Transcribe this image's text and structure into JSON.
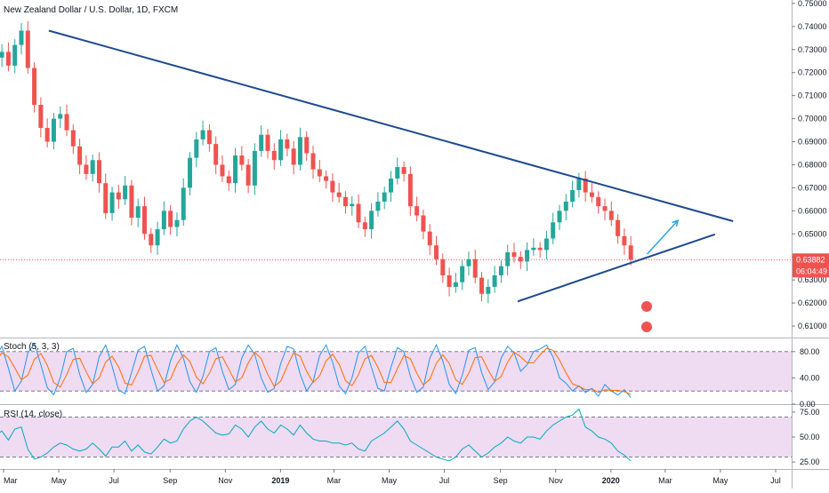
{
  "chart_data": [
    {
      "type": "candlestick",
      "title": "New Zealand Dollar / U.S. Dollar, 1D, FXCM",
      "ylim": [
        0.605,
        0.7515
      ],
      "yticks": [
        "0.75000",
        "0.74000",
        "0.73000",
        "0.72000",
        "0.71000",
        "0.70000",
        "0.69000",
        "0.68000",
        "0.67000",
        "0.66000",
        "0.65000",
        "0.64000",
        "0.63000",
        "0.62000",
        "0.61000"
      ],
      "ytick_values": [
        0.75,
        0.74,
        0.73,
        0.72,
        0.71,
        0.7,
        0.69,
        0.68,
        0.67,
        0.66,
        0.65,
        0.64,
        0.63,
        0.62,
        0.61
      ],
      "xticks": [
        "Mar",
        "May",
        "Jul",
        "Sep",
        "Nov",
        "2019",
        "Mar",
        "May",
        "Jul",
        "Sep",
        "Nov",
        "2020",
        "Mar",
        "May",
        "Jul"
      ],
      "last_price": "0.63882",
      "last_price_value": 0.63882,
      "countdown": "06:04:49",
      "trendlines": [
        {
          "name": "upper",
          "from": [
            "2018-04-20",
            0.7382
          ],
          "to": [
            "2020-05-15",
            0.6555
          ]
        },
        {
          "name": "lower",
          "from": [
            "2019-09-20",
            0.6207
          ],
          "to": [
            "2020-04-25",
            0.6498
          ]
        }
      ],
      "arrow": {
        "from": [
          "2020-02-10",
          0.6412
        ],
        "to": [
          "2020-03-15",
          0.6558
        ]
      },
      "series": [
        {
          "name": "close",
          "values": [
            0.7265,
            0.729,
            0.723,
            0.732,
            0.7382,
            0.722,
            0.706,
            0.696,
            0.69,
            0.7,
            0.702,
            0.695,
            0.688,
            0.68,
            0.676,
            0.682,
            0.672,
            0.659,
            0.668,
            0.665,
            0.671,
            0.657,
            0.662,
            0.65,
            0.645,
            0.652,
            0.66,
            0.653,
            0.656,
            0.67,
            0.683,
            0.691,
            0.695,
            0.689,
            0.68,
            0.675,
            0.672,
            0.684,
            0.68,
            0.671,
            0.686,
            0.693,
            0.686,
            0.682,
            0.691,
            0.687,
            0.68,
            0.692,
            0.685,
            0.678,
            0.675,
            0.673,
            0.668,
            0.666,
            0.662,
            0.663,
            0.655,
            0.652,
            0.66,
            0.664,
            0.668,
            0.674,
            0.679,
            0.676,
            0.662,
            0.658,
            0.651,
            0.645,
            0.639,
            0.632,
            0.627,
            0.629,
            0.636,
            0.639,
            0.631,
            0.624,
            0.627,
            0.632,
            0.636,
            0.642,
            0.64,
            0.638,
            0.643,
            0.644,
            0.643,
            0.648,
            0.655,
            0.66,
            0.664,
            0.669,
            0.674,
            0.668,
            0.666,
            0.662,
            0.66,
            0.656,
            0.649,
            0.645,
            0.6388
          ]
        }
      ]
    },
    {
      "type": "line",
      "title": "Stoch (5, 3, 3)",
      "ylim": [
        0,
        100
      ],
      "yticks": [
        "80.00",
        "40.00",
        "0.00"
      ],
      "ytick_values": [
        80,
        40,
        0
      ],
      "bands": [
        20,
        80
      ],
      "series": [
        {
          "name": "%K",
          "values": [
            72,
            88,
            55,
            20,
            35,
            78,
            92,
            60,
            25,
            14,
            40,
            80,
            85,
            45,
            18,
            30,
            72,
            90,
            58,
            22,
            16,
            48,
            82,
            88,
            52,
            20,
            28,
            66,
            90,
            70,
            34,
            18,
            42,
            80,
            86,
            50,
            22,
            30,
            70,
            90,
            76,
            40,
            18,
            24,
            62,
            88,
            84,
            46,
            20,
            34,
            74,
            90,
            64,
            28,
            16,
            40,
            78,
            88,
            56,
            24,
            20,
            56,
            86,
            80,
            42,
            18,
            26,
            70,
            90,
            66,
            30,
            16,
            44,
            82,
            86,
            48,
            22,
            34,
            70,
            88,
            78,
            50,
            60,
            80,
            84,
            90,
            72,
            40,
            32,
            20,
            28,
            18,
            24,
            12,
            30,
            20,
            14,
            22,
            10
          ]
        },
        {
          "name": "%D",
          "values": [
            66,
            78,
            72,
            55,
            37,
            44,
            68,
            77,
            59,
            33,
            26,
            45,
            68,
            70,
            49,
            31,
            40,
            64,
            73,
            57,
            32,
            29,
            49,
            73,
            74,
            53,
            33,
            38,
            61,
            75,
            65,
            41,
            31,
            47,
            69,
            72,
            53,
            34,
            40,
            63,
            79,
            69,
            45,
            27,
            35,
            58,
            78,
            73,
            50,
            33,
            43,
            66,
            76,
            61,
            36,
            28,
            45,
            69,
            74,
            56,
            33,
            33,
            54,
            74,
            69,
            47,
            29,
            38,
            62,
            75,
            62,
            37,
            30,
            47,
            71,
            72,
            52,
            35,
            42,
            64,
            79,
            72,
            63,
            63,
            75,
            85,
            82,
            67,
            48,
            31,
            27,
            22,
            23,
            18,
            22,
            21,
            21,
            19,
            15
          ]
        }
      ]
    },
    {
      "type": "line",
      "title": "RSI (14, close)",
      "ylim": [
        18,
        82
      ],
      "yticks": [
        "75.00",
        "50.00",
        "25.00"
      ],
      "ytick_values": [
        75,
        50,
        25
      ],
      "bands": [
        30,
        70
      ],
      "series": [
        {
          "name": "RSI",
          "values": [
            52,
            56,
            47,
            58,
            60,
            38,
            28,
            30,
            34,
            40,
            44,
            42,
            38,
            36,
            38,
            44,
            38,
            31,
            40,
            40,
            46,
            36,
            42,
            35,
            33,
            40,
            48,
            44,
            46,
            58,
            66,
            70,
            66,
            60,
            54,
            52,
            53,
            62,
            58,
            50,
            60,
            66,
            58,
            54,
            62,
            58,
            52,
            62,
            54,
            48,
            46,
            46,
            44,
            44,
            42,
            44,
            38,
            36,
            46,
            50,
            54,
            60,
            66,
            58,
            46,
            42,
            38,
            34,
            30,
            28,
            26,
            30,
            38,
            42,
            36,
            30,
            34,
            40,
            44,
            50,
            46,
            44,
            50,
            50,
            48,
            56,
            62,
            66,
            70,
            72,
            78,
            60,
            56,
            50,
            48,
            44,
            36,
            32,
            26
          ]
        }
      ]
    }
  ]
}
